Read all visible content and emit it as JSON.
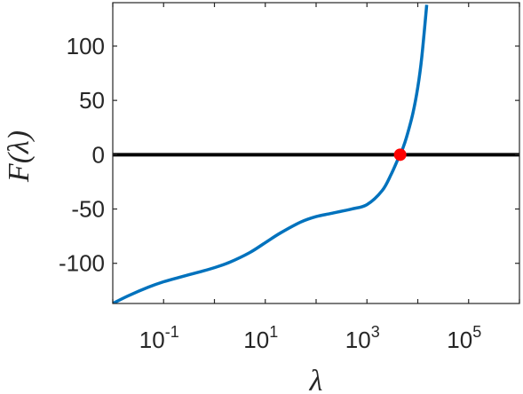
{
  "chart_data": {
    "type": "line",
    "title": "",
    "xlabel": "λ",
    "ylabel": "F(λ)",
    "xscale": "log",
    "xlim": [
      0.01,
      1000000
    ],
    "ylim": [
      -137,
      140
    ],
    "grid": false,
    "legend": "none",
    "x_ticks": [
      {
        "value": 0.1,
        "base": "10",
        "exp": "-1"
      },
      {
        "value": 10,
        "base": "10",
        "exp": "1"
      },
      {
        "value": 1000,
        "base": "10",
        "exp": "3"
      },
      {
        "value": 100000,
        "base": "10",
        "exp": "5"
      }
    ],
    "y_ticks": [
      {
        "value": 100,
        "label": "100"
      },
      {
        "value": 50,
        "label": "50"
      },
      {
        "value": 0,
        "label": "0"
      },
      {
        "value": -50,
        "label": "-50"
      },
      {
        "value": -100,
        "label": "-100"
      }
    ],
    "series": [
      {
        "color": "#0072BD",
        "x": [
          0.01,
          0.02,
          0.05,
          0.1,
          0.2,
          0.5,
          1,
          2,
          5,
          10,
          20,
          50,
          100,
          200,
          500,
          1000,
          2000,
          3000,
          4000,
          4500,
          5000,
          6000,
          8000,
          10000,
          12000,
          15000
        ],
        "y": [
          -137,
          -130,
          -122,
          -117,
          -113,
          -108,
          -104,
          -99,
          -90,
          -81,
          -72,
          -62,
          -57,
          -54,
          -50,
          -46,
          -33,
          -18,
          -5,
          0,
          5,
          16,
          38,
          62,
          90,
          138
        ]
      }
    ],
    "reference_line": {
      "y": 0,
      "color": "#000000"
    },
    "marker": {
      "x": 4500,
      "y": 0,
      "color": "#FF0000"
    }
  }
}
